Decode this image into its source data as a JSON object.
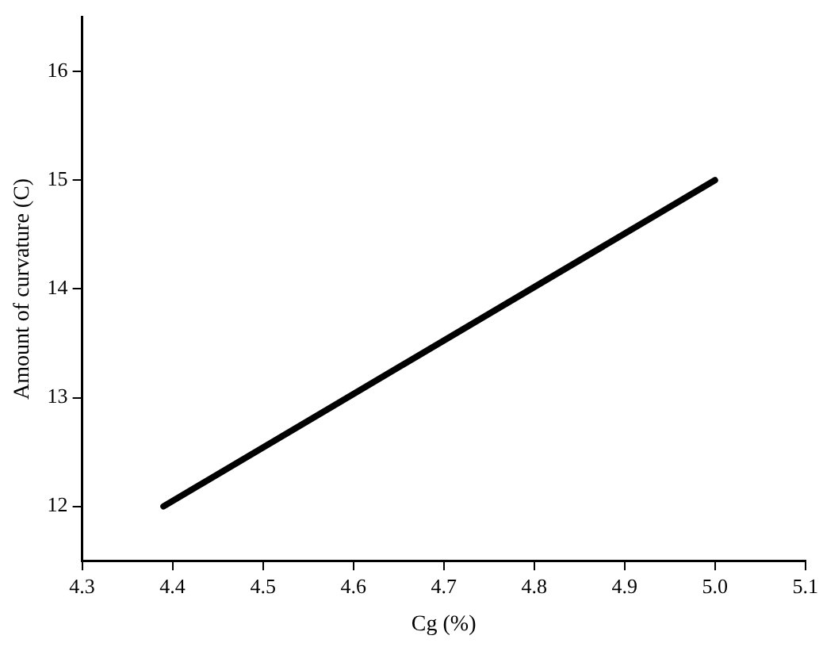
{
  "chart_data": {
    "type": "line",
    "xlabel": "Cg (%)",
    "ylabel": "Amount of curvature (C)",
    "x": [
      4.39,
      5.0
    ],
    "series": [
      {
        "color": "#000000",
        "values": [
          12,
          15
        ]
      }
    ],
    "xlim": [
      4.3,
      5.1
    ],
    "xticks": [
      4.3,
      4.4,
      4.5,
      4.6,
      4.7,
      4.8,
      4.9,
      {
        "value": 5.0,
        "label": "5.0"
      },
      5.1
    ],
    "ylim": [
      11.5,
      16.5
    ],
    "yticks": [
      12,
      13,
      14,
      15,
      16
    ],
    "grid": false,
    "legend": false,
    "marker": "none",
    "line_style": "solid"
  }
}
